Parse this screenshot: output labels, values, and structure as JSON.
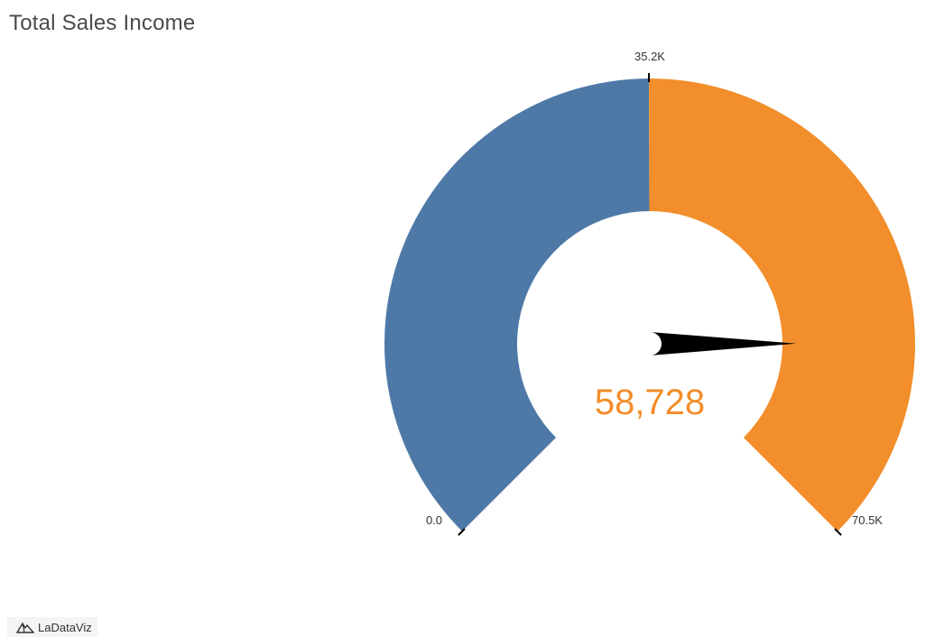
{
  "colors": {
    "low_segment": "#4e79a7",
    "high_segment": "#f28e2b",
    "needle": "#000000",
    "value_text": "#f28e2b"
  },
  "chart_data": {
    "type": "gauge",
    "title": "Total Sales Income",
    "min": 0,
    "max": 70500,
    "midpoint": 35200,
    "value": 58728,
    "value_label": "58,728",
    "tick_labels": [
      "0.0",
      "35.2K",
      "70.5K"
    ],
    "segments": [
      {
        "from": 0,
        "to": 35200,
        "color": "#4e79a7"
      },
      {
        "from": 35200,
        "to": 70500,
        "color": "#f28e2b"
      }
    ]
  },
  "branding": {
    "logo_text": "LaDataViz",
    "logo_icon": "mountain-logo-icon"
  }
}
